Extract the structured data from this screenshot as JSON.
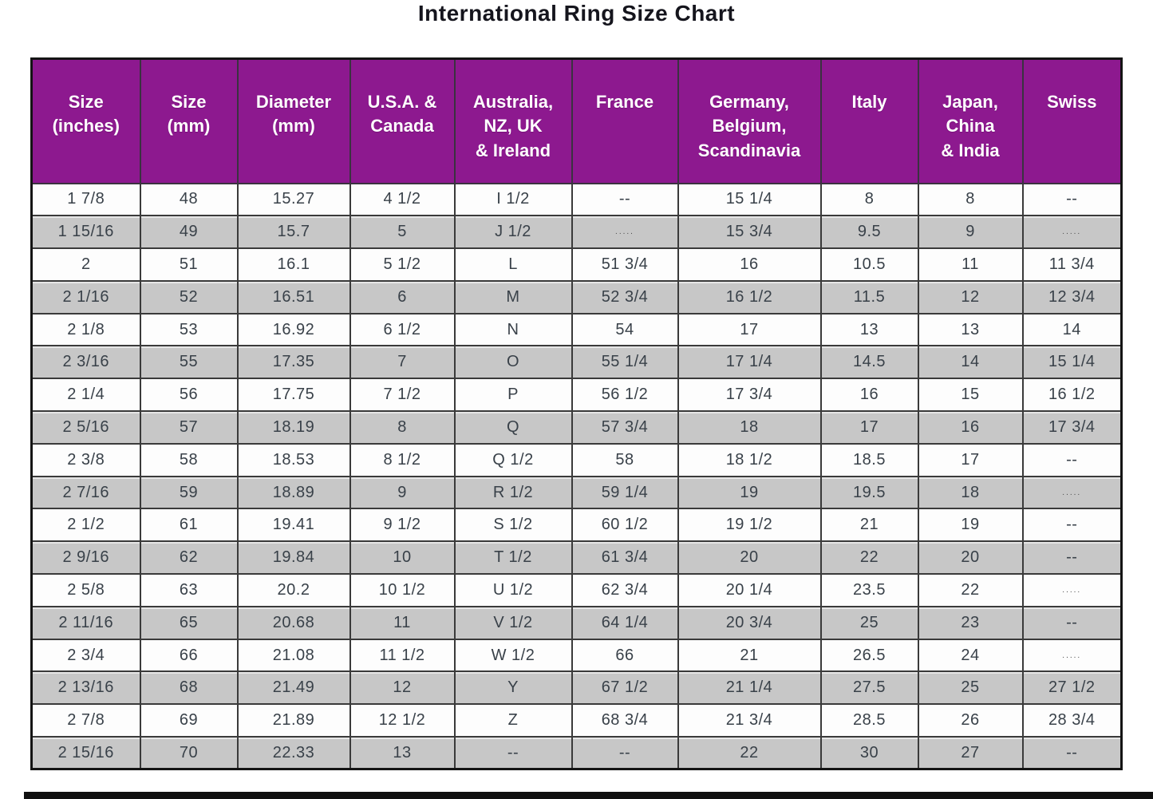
{
  "title": "International Ring Size Chart",
  "colors": {
    "header_bg": "#8d198f",
    "header_text": "#ffffff",
    "row_bg": "#fdfdfd",
    "row_alt_bg": "#c7c7c7",
    "grid_line": "#3a3a3a",
    "cell_text": "#394149",
    "bottom_bar": "#101010"
  },
  "chart_data": {
    "type": "table",
    "title": "International Ring Size Chart",
    "column_keys": [
      "size-inches",
      "size-mm",
      "diameter-mm",
      "usa-canada",
      "australia-nz-uk-ireland",
      "france",
      "germany-belgium-scandinavia",
      "italy",
      "japan-china-india",
      "swiss"
    ],
    "columns": [
      "Size\n(inches)",
      "Size\n(mm)",
      "Diameter\n(mm)",
      "U.S.A. &\nCanada",
      "Australia,\nNZ, UK\n& Ireland",
      "France",
      "Germany,\nBelgium,\nScandinavia",
      "Italy",
      "Japan,\nChina\n& India",
      "Swiss"
    ],
    "rows": [
      [
        "1 7/8",
        "48",
        "15.27",
        "4 1/2",
        "I 1/2",
        "--",
        "15 1/4",
        "8",
        "8",
        "--"
      ],
      [
        "1 15/16",
        "49",
        "15.7",
        "5",
        "J 1/2",
        ".....",
        "15 3/4",
        "9.5",
        "9",
        "....."
      ],
      [
        "2",
        "51",
        "16.1",
        "5 1/2",
        "L",
        "51 3/4",
        "16",
        "10.5",
        "11",
        "11 3/4"
      ],
      [
        "2 1/16",
        "52",
        "16.51",
        "6",
        "M",
        "52 3/4",
        "16 1/2",
        "11.5",
        "12",
        "12 3/4"
      ],
      [
        "2 1/8",
        "53",
        "16.92",
        "6 1/2",
        "N",
        "54",
        "17",
        "13",
        "13",
        "14"
      ],
      [
        "2 3/16",
        "55",
        "17.35",
        "7",
        "O",
        "55 1/4",
        "17 1/4",
        "14.5",
        "14",
        "15 1/4"
      ],
      [
        "2 1/4",
        "56",
        "17.75",
        "7 1/2",
        "P",
        "56 1/2",
        "17 3/4",
        "16",
        "15",
        "16 1/2"
      ],
      [
        "2 5/16",
        "57",
        "18.19",
        "8",
        "Q",
        "57 3/4",
        "18",
        "17",
        "16",
        "17 3/4"
      ],
      [
        "2 3/8",
        "58",
        "18.53",
        "8 1/2",
        "Q 1/2",
        "58",
        "18 1/2",
        "18.5",
        "17",
        "--"
      ],
      [
        "2 7/16",
        "59",
        "18.89",
        "9",
        "R 1/2",
        "59 1/4",
        "19",
        "19.5",
        "18",
        "....."
      ],
      [
        "2 1/2",
        "61",
        "19.41",
        "9 1/2",
        "S 1/2",
        "60 1/2",
        "19 1/2",
        "21",
        "19",
        "--"
      ],
      [
        "2 9/16",
        "62",
        "19.84",
        "10",
        "T 1/2",
        "61 3/4",
        "20",
        "22",
        "20",
        "--"
      ],
      [
        "2 5/8",
        "63",
        "20.2",
        "10 1/2",
        "U 1/2",
        "62 3/4",
        "20 1/4",
        "23.5",
        "22",
        "....."
      ],
      [
        "2 11/16",
        "65",
        "20.68",
        "11",
        "V 1/2",
        "64 1/4",
        "20 3/4",
        "25",
        "23",
        "--"
      ],
      [
        "2 3/4",
        "66",
        "21.08",
        "11 1/2",
        "W 1/2",
        "66",
        "21",
        "26.5",
        "24",
        "....."
      ],
      [
        "2 13/16",
        "68",
        "21.49",
        "12",
        "Y",
        "67 1/2",
        "21 1/4",
        "27.5",
        "25",
        "27 1/2"
      ],
      [
        "2 7/8",
        "69",
        "21.89",
        "12 1/2",
        "Z",
        "68 3/4",
        "21 3/4",
        "28.5",
        "26",
        "28 3/4"
      ],
      [
        "2 15/16",
        "70",
        "22.33",
        "13",
        "--",
        "--",
        "22",
        "30",
        "27",
        "--"
      ]
    ]
  }
}
